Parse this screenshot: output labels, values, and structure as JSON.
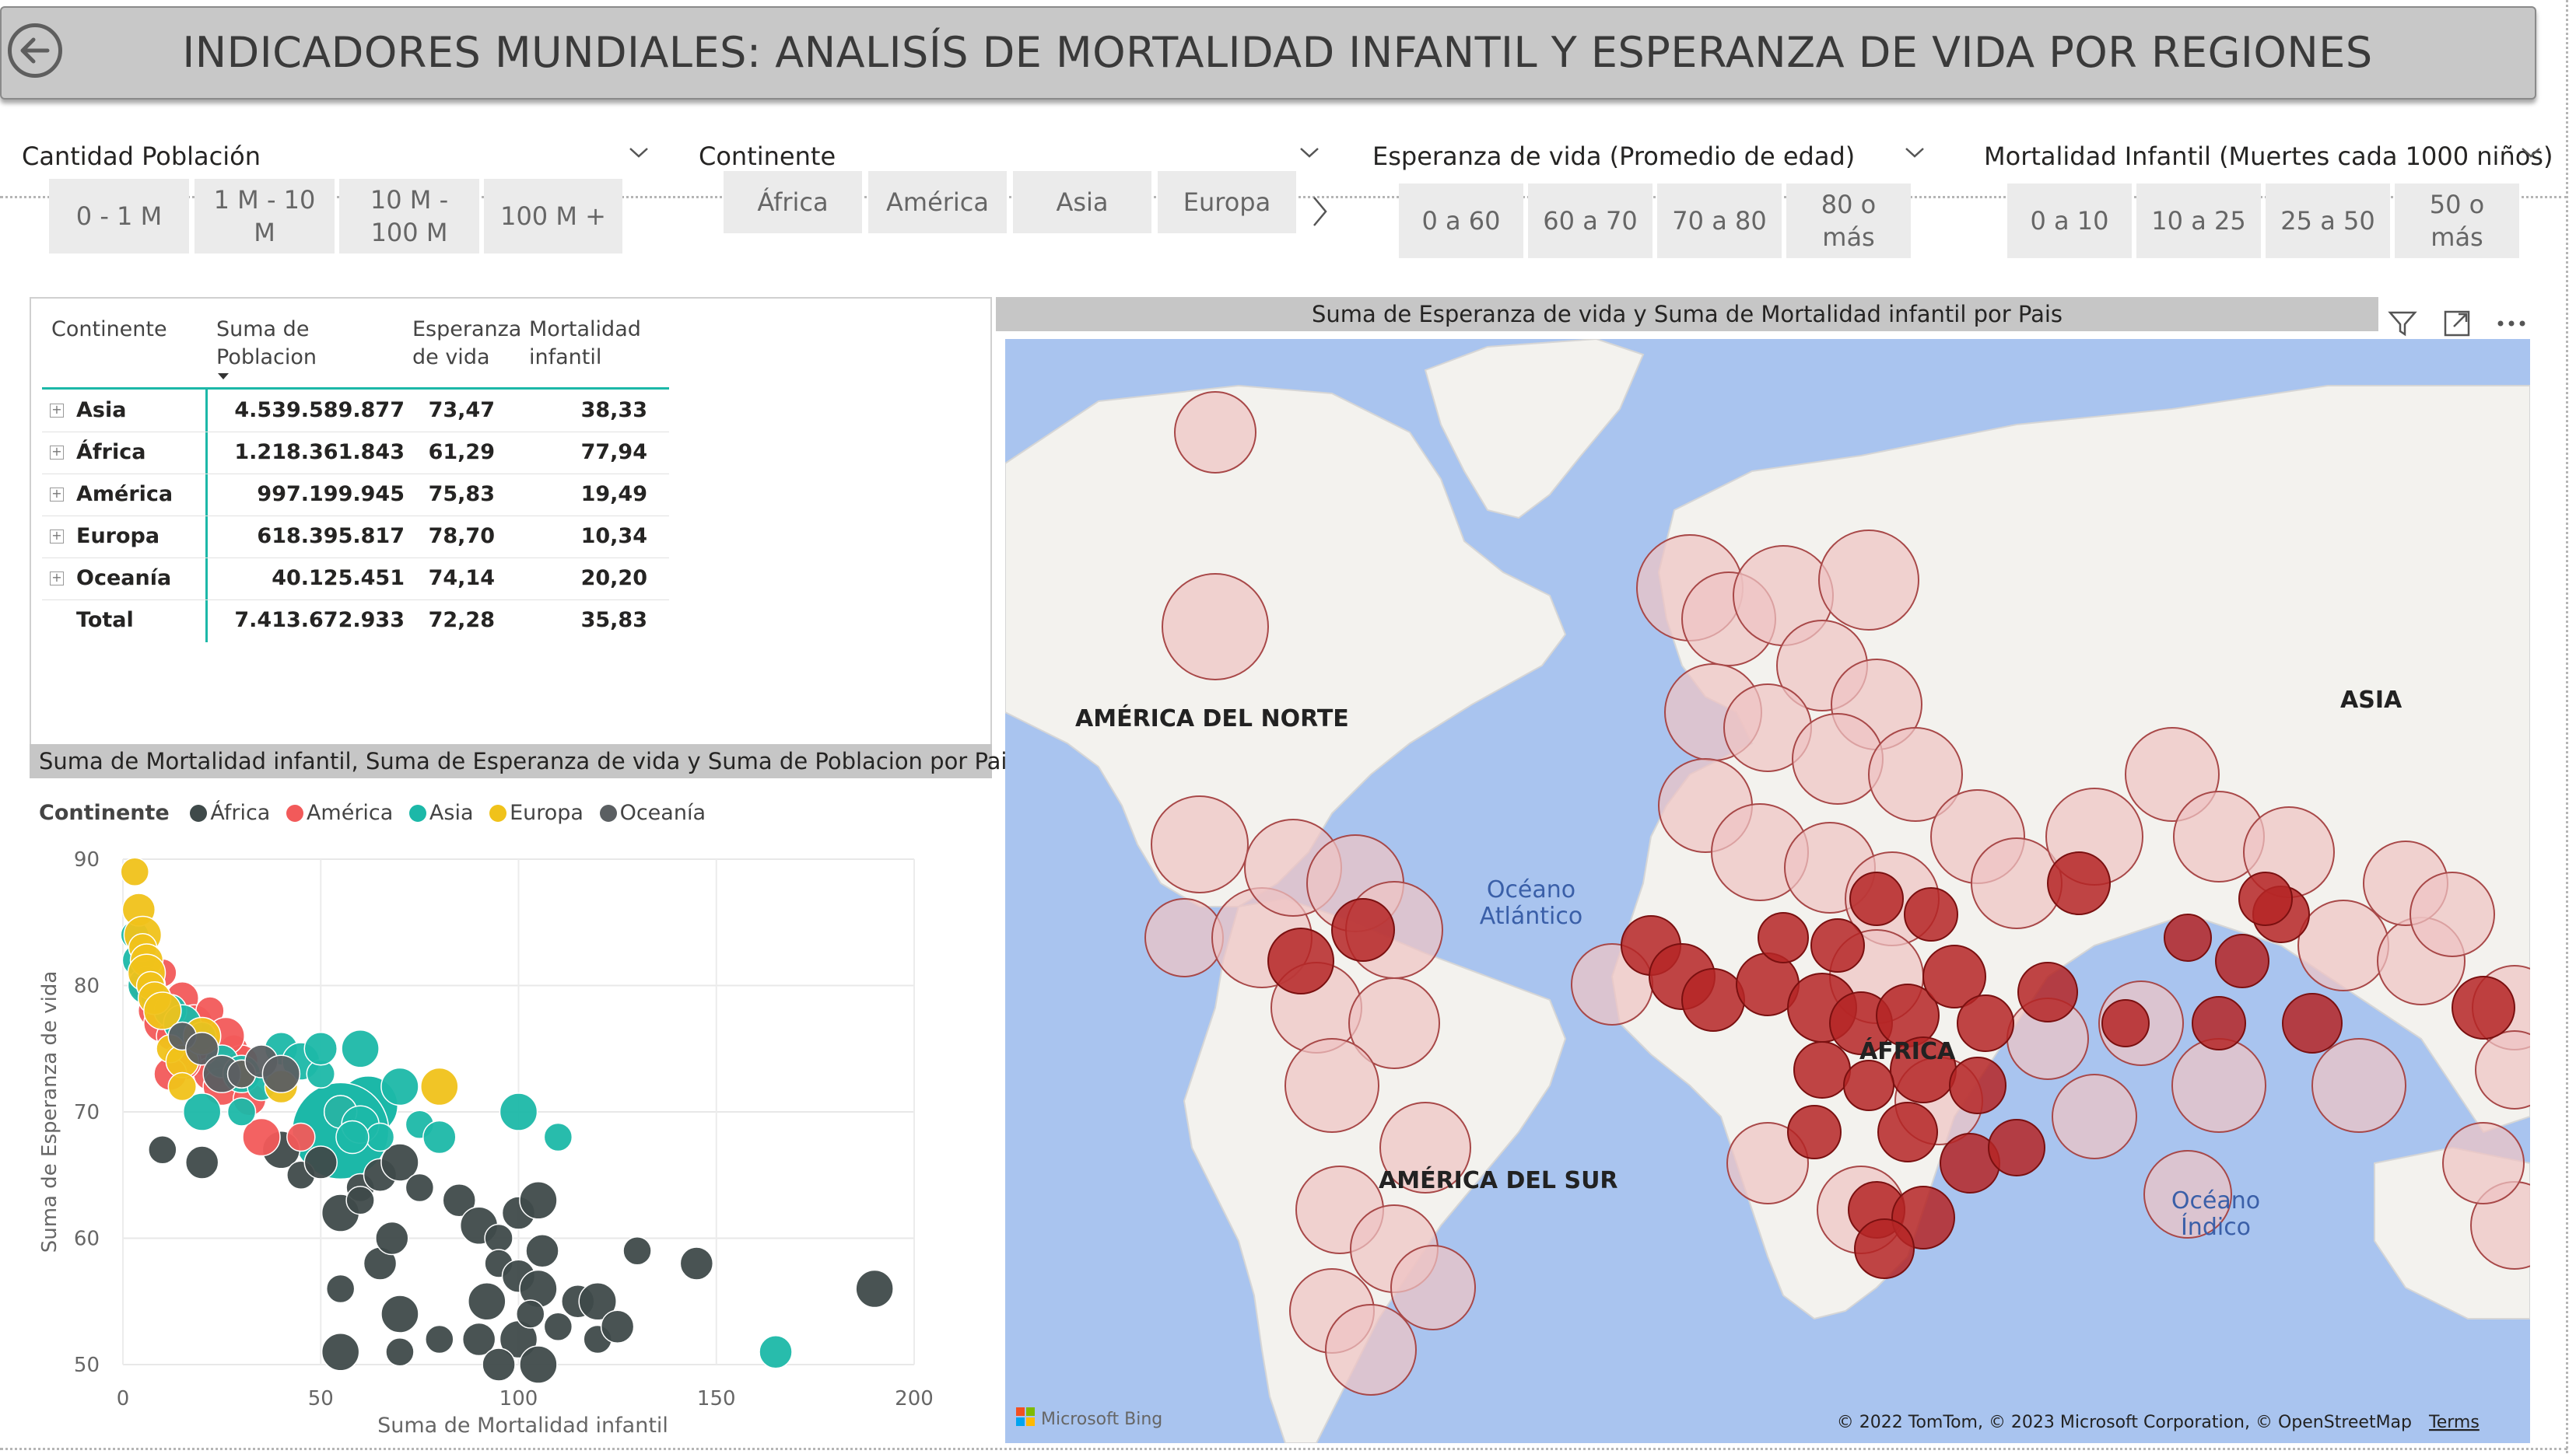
{
  "header": {
    "title": "INDICADORES MUNDIALES: ANALISÍS DE MORTALIDAD INFANTIL Y ESPERANZA DE VIDA POR REGIONES",
    "back_icon": "back-arrow-circle-icon"
  },
  "slicers": [
    {
      "title": "Cantidad Población",
      "options": [
        "0 - 1 M",
        "1 M - 10 M",
        "10 M - 100 M",
        "100 M +"
      ]
    },
    {
      "title": "Continente",
      "options": [
        "África",
        "América",
        "Asia",
        "Europa"
      ]
    },
    {
      "title": "Esperanza de vida (Promedio de edad)",
      "options": [
        "0 a 60",
        "60 a 70",
        "70 a 80",
        "80 o más"
      ]
    },
    {
      "title": "Mortalidad Infantil (Muertes cada 1000 niños)",
      "options": [
        "0 a 10",
        "10 a 25",
        "25 a 50",
        "50 o más"
      ]
    }
  ],
  "table": {
    "headers": [
      "Continente",
      "Suma de Poblacion",
      "Esperanza de vida",
      "Mortalidad infantil"
    ],
    "rows": [
      {
        "continente": "Asia",
        "poblacion": "4.539.589.877",
        "esperanza": "73,47",
        "mortalidad": "38,33"
      },
      {
        "continente": "África",
        "poblacion": "1.218.361.843",
        "esperanza": "61,29",
        "mortalidad": "77,94"
      },
      {
        "continente": "América",
        "poblacion": "997.199.945",
        "esperanza": "75,83",
        "mortalidad": "19,49"
      },
      {
        "continente": "Europa",
        "poblacion": "618.395.817",
        "esperanza": "78,70",
        "mortalidad": "10,34"
      },
      {
        "continente": "Oceanía",
        "poblacion": "40.125.451",
        "esperanza": "74,14",
        "mortalidad": "20,20"
      }
    ],
    "total": {
      "label": "Total",
      "poblacion": "7.413.672.933",
      "esperanza": "72,28",
      "mortalidad": "35,83"
    }
  },
  "scatter": {
    "title": "Suma de Mortalidad infantil, Suma de Esperanza de vida y Suma de Poblacion por Pais ...",
    "legend_title": "Continente",
    "legend": [
      {
        "name": "África",
        "color": "#3f4a4a"
      },
      {
        "name": "América",
        "color": "#f25a5a"
      },
      {
        "name": "Asia",
        "color": "#1cb8a8"
      },
      {
        "name": "Europa",
        "color": "#f0c21a"
      },
      {
        "name": "Oceanía",
        "color": "#5b5f62"
      }
    ]
  },
  "chart_data": {
    "type": "scatter",
    "xlabel": "Suma de Mortalidad infantil",
    "ylabel": "Suma de Esperanza de vida",
    "xlim": [
      0,
      200
    ],
    "ylim": [
      50,
      90
    ],
    "x_ticks": [
      "0",
      "50",
      "100",
      "150",
      "200"
    ],
    "y_ticks": [
      "50",
      "60",
      "70",
      "80",
      "90"
    ],
    "series": [
      {
        "name": "África",
        "points": [
          [
            10,
            67
          ],
          [
            20,
            66
          ],
          [
            40,
            67
          ],
          [
            45,
            65
          ],
          [
            50,
            66
          ],
          [
            55,
            62
          ],
          [
            60,
            64
          ],
          [
            65,
            65
          ],
          [
            70,
            66
          ],
          [
            75,
            64
          ],
          [
            85,
            63
          ],
          [
            90,
            61
          ],
          [
            95,
            60
          ],
          [
            100,
            62
          ],
          [
            105,
            63
          ],
          [
            95,
            58
          ],
          [
            100,
            57
          ],
          [
            105,
            56
          ],
          [
            110,
            53
          ],
          [
            115,
            55
          ],
          [
            120,
            55
          ],
          [
            130,
            59
          ],
          [
            145,
            58
          ],
          [
            190,
            56
          ],
          [
            55,
            56
          ],
          [
            65,
            58
          ],
          [
            70,
            54
          ],
          [
            80,
            52
          ],
          [
            90,
            52
          ],
          [
            100,
            52
          ],
          [
            120,
            52
          ],
          [
            125,
            53
          ],
          [
            55,
            51
          ],
          [
            70,
            51
          ],
          [
            95,
            50
          ],
          [
            105,
            50
          ],
          [
            60,
            63
          ],
          [
            68,
            60
          ],
          [
            92,
            55
          ],
          [
            103,
            54
          ],
          [
            106,
            59
          ]
        ]
      },
      {
        "name": "América",
        "points": [
          [
            5,
            80
          ],
          [
            8,
            78
          ],
          [
            10,
            77
          ],
          [
            12,
            76
          ],
          [
            15,
            79
          ],
          [
            18,
            75
          ],
          [
            20,
            74
          ],
          [
            22,
            73
          ],
          [
            25,
            72
          ],
          [
            28,
            75
          ],
          [
            30,
            74
          ],
          [
            15,
            74
          ],
          [
            10,
            81
          ],
          [
            32,
            71
          ],
          [
            35,
            68
          ],
          [
            45,
            68
          ],
          [
            55,
            70
          ],
          [
            18,
            77
          ],
          [
            22,
            78
          ],
          [
            12,
            73
          ],
          [
            26,
            76
          ]
        ]
      },
      {
        "name": "Asia",
        "points": [
          [
            3,
            84
          ],
          [
            4,
            82
          ],
          [
            6,
            80
          ],
          [
            8,
            79
          ],
          [
            12,
            78
          ],
          [
            15,
            77
          ],
          [
            20,
            76
          ],
          [
            25,
            74
          ],
          [
            30,
            73
          ],
          [
            35,
            72
          ],
          [
            40,
            75
          ],
          [
            45,
            74
          ],
          [
            50,
            73
          ],
          [
            55,
            70
          ],
          [
            60,
            69
          ],
          [
            65,
            68
          ],
          [
            58,
            68
          ],
          [
            70,
            72
          ],
          [
            75,
            69
          ],
          [
            80,
            68
          ],
          [
            100,
            70
          ],
          [
            110,
            68
          ],
          [
            165,
            51
          ],
          [
            20,
            70
          ],
          [
            30,
            70
          ],
          [
            50,
            75
          ],
          [
            60,
            75
          ]
        ]
      },
      {
        "name": "Europa",
        "points": [
          [
            3,
            89
          ],
          [
            4,
            86
          ],
          [
            5,
            84
          ],
          [
            5,
            83
          ],
          [
            6,
            82
          ],
          [
            6,
            81
          ],
          [
            7,
            80
          ],
          [
            8,
            79
          ],
          [
            10,
            78
          ],
          [
            12,
            75
          ],
          [
            15,
            74
          ],
          [
            20,
            76
          ],
          [
            30,
            73
          ],
          [
            40,
            72
          ],
          [
            80,
            72
          ],
          [
            15,
            72
          ]
        ]
      },
      {
        "name": "Oceanía",
        "points": [
          [
            15,
            76
          ],
          [
            20,
            75
          ],
          [
            25,
            73
          ],
          [
            30,
            73
          ],
          [
            35,
            74
          ],
          [
            40,
            73
          ]
        ]
      }
    ]
  },
  "map": {
    "title": "Suma de Esperanza de vida y Suma de Mortalidad infantil por Pais",
    "labels": {
      "north_america": "AMÉRICA DEL NORTE",
      "south_america": "AMÉRICA DEL SUR",
      "africa": "ÁFRICA",
      "asia": "ASIA",
      "ocean_atlantic_1": "Océano",
      "ocean_atlantic_2": "Atlántico",
      "ocean_indian_1": "Océano",
      "ocean_indian_2": "Índico"
    },
    "attribution": "© 2022 TomTom, © 2023 Microsoft Corporation, © OpenStreetMap",
    "terms": "Terms",
    "bing": "Microsoft Bing",
    "colors": {
      "water": "#a9c4ef",
      "land": "#f3f2ee",
      "bubble_light": "#eec4c4",
      "bubble_dark": "#a01818"
    }
  }
}
